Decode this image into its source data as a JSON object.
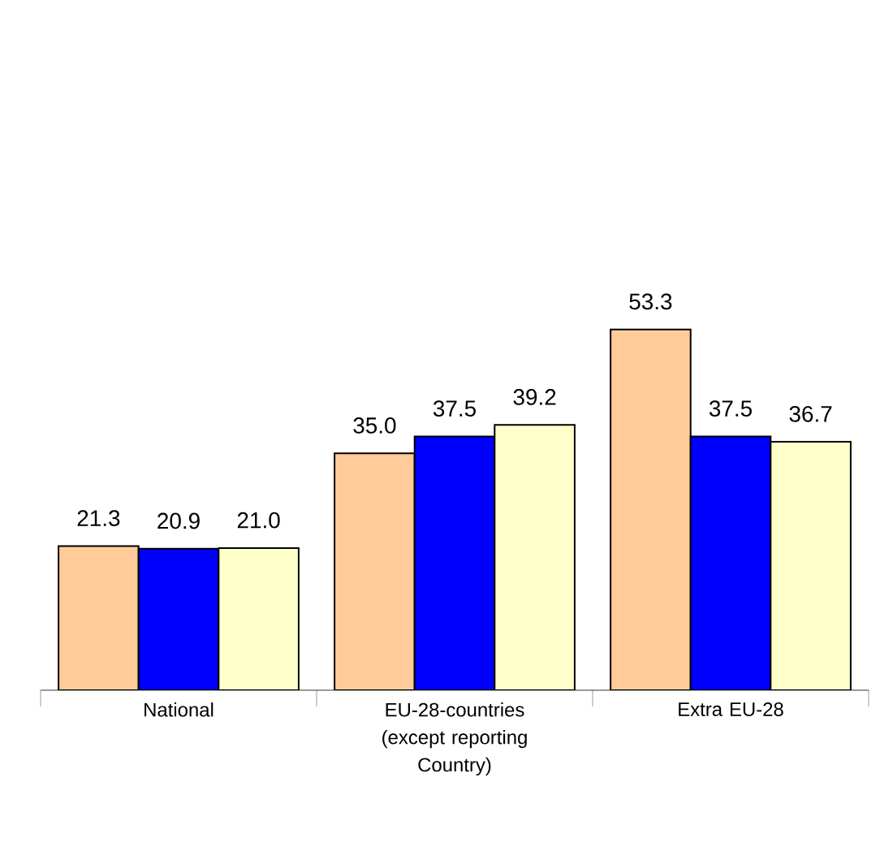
{
  "chart_data": {
    "type": "bar",
    "categories": [
      "National",
      "EU-28-countries (except reporting Country)",
      "Extra EU-28"
    ],
    "series": [
      {
        "color": "#ffcc99",
        "values": [
          21.3,
          35.0,
          53.3
        ],
        "value_labels": [
          "21.3",
          "35.0",
          "53.3"
        ]
      },
      {
        "color": "#0000ff",
        "values": [
          20.9,
          37.5,
          37.5
        ],
        "value_labels": [
          "20.9",
          "37.5",
          "37.5"
        ]
      },
      {
        "color": "#ffffcc",
        "values": [
          21.0,
          39.2,
          36.7
        ],
        "value_labels": [
          "21.0",
          "39.2",
          "36.7"
        ]
      }
    ]
  }
}
